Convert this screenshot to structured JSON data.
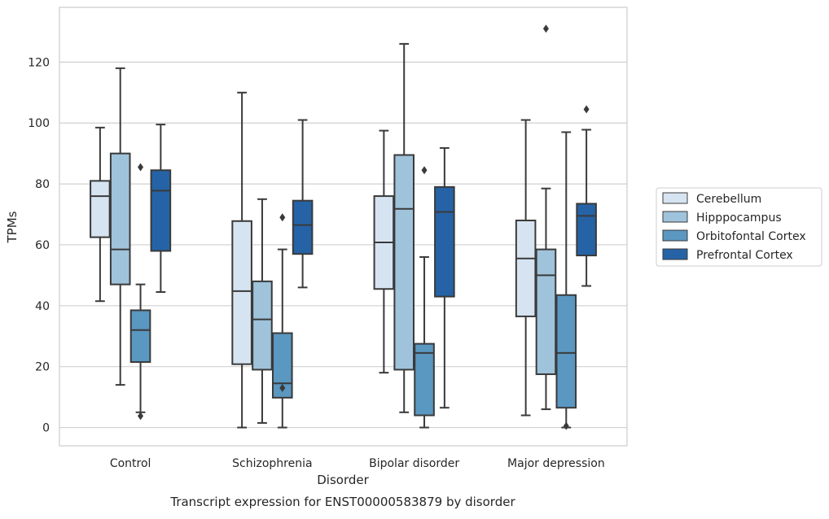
{
  "caption": "Transcript expression for ENST00000583879 by disorder",
  "chart_data": {
    "type": "box",
    "xlabel": "Disorder",
    "ylabel": "TPMs",
    "ylim": [
      -6,
      138
    ],
    "y_ticks": [
      0,
      20,
      40,
      60,
      80,
      100,
      120
    ],
    "y_tick_labels": [
      "0",
      "20",
      "40",
      "60",
      "80",
      "100",
      "120"
    ],
    "grid": "horizontal",
    "legend_position": "right",
    "categories": [
      "Control",
      "Schizophrenia",
      "Bipolar disorder",
      "Major depression"
    ],
    "series": [
      {
        "name": "Cerebellum",
        "color": "#d6e4f2",
        "boxes": [
          {
            "q1": 62.5,
            "median": 76,
            "q3": 81,
            "whisker_low": 41.5,
            "whisker_high": 98.5,
            "outliers": []
          },
          {
            "q1": 20.8,
            "median": 44.8,
            "q3": 67.8,
            "whisker_low": 0,
            "whisker_high": 110,
            "outliers": []
          },
          {
            "q1": 45.5,
            "median": 60.8,
            "q3": 76,
            "whisker_low": 18,
            "whisker_high": 97.5,
            "outliers": []
          },
          {
            "q1": 36.5,
            "median": 55.5,
            "q3": 68,
            "whisker_low": 4,
            "whisker_high": 101,
            "outliers": []
          }
        ]
      },
      {
        "name": "Hipppocampus",
        "color": "#9fc3db",
        "boxes": [
          {
            "q1": 47,
            "median": 58.5,
            "q3": 90,
            "whisker_low": 14,
            "whisker_high": 118,
            "outliers": []
          },
          {
            "q1": 19,
            "median": 35.5,
            "q3": 48,
            "whisker_low": 1.5,
            "whisker_high": 75,
            "outliers": []
          },
          {
            "q1": 19,
            "median": 71.8,
            "q3": 89.5,
            "whisker_low": 5,
            "whisker_high": 126,
            "outliers": []
          },
          {
            "q1": 17.5,
            "median": 50,
            "q3": 58.5,
            "whisker_low": 6,
            "whisker_high": 78.5,
            "outliers": [
              131
            ]
          }
        ]
      },
      {
        "name": "Orbitofontal Cortex",
        "color": "#5a97c1",
        "boxes": [
          {
            "q1": 21.5,
            "median": 32,
            "q3": 38.5,
            "whisker_low": 5,
            "whisker_high": 47,
            "outliers": [
              85.5,
              3.8
            ]
          },
          {
            "q1": 9.8,
            "median": 14.5,
            "q3": 31,
            "whisker_low": 0,
            "whisker_high": 58.5,
            "outliers": [
              69,
              13
            ]
          },
          {
            "q1": 4,
            "median": 24.5,
            "q3": 27.5,
            "whisker_low": 0,
            "whisker_high": 56,
            "outliers": [
              84.5
            ]
          },
          {
            "q1": 6.5,
            "median": 24.5,
            "q3": 43.5,
            "whisker_low": 0,
            "whisker_high": 97,
            "outliers": [
              0.5
            ]
          }
        ]
      },
      {
        "name": "Prefrontal Cortex",
        "color": "#2563a6",
        "boxes": [
          {
            "q1": 58,
            "median": 77.8,
            "q3": 84.5,
            "whisker_low": 44.5,
            "whisker_high": 99.5,
            "outliers": []
          },
          {
            "q1": 57,
            "median": 66.5,
            "q3": 74.5,
            "whisker_low": 46,
            "whisker_high": 101,
            "outliers": []
          },
          {
            "q1": 43,
            "median": 70.8,
            "q3": 79,
            "whisker_low": 6.5,
            "whisker_high": 91.8,
            "outliers": []
          },
          {
            "q1": 56.5,
            "median": 69.5,
            "q3": 73.5,
            "whisker_low": 46.5,
            "whisker_high": 97.8,
            "outliers": [
              104.5
            ]
          }
        ]
      }
    ]
  }
}
